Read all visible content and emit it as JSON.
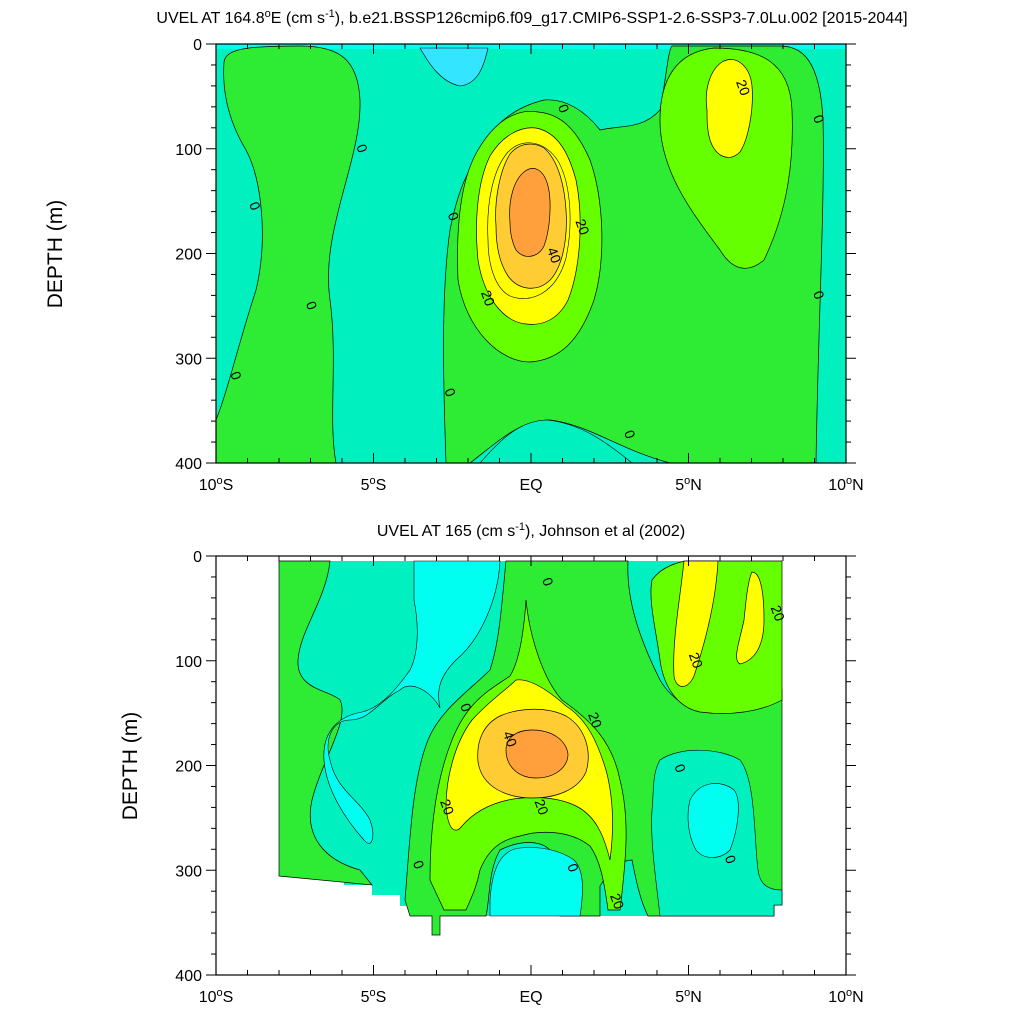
{
  "colors": {
    "lt_neg20": "#33E5FF",
    "lt_neg10": "#00FFF0",
    "lt_0": "#00F0C0",
    "lt_10": "#2EEB33",
    "lt_20": "#66FF00",
    "lt_30": "#FFFF00",
    "lt_40": "#FFCC33",
    "lt_50": "#FFA03C",
    "line": "#000000"
  },
  "chart_data": [
    {
      "type": "contour",
      "title": "UVEL AT 164.8°E (cm s^-1), b.e21.BSSP126cmip6.f09_g17.CMIP6-SSP1-2.6-SSP3-7.0Lu.002 [2015-2044]",
      "title_parts": {
        "a": "UVEL AT 164.8",
        "deg": "o",
        "b": "E (cm s",
        "sup": "-1",
        "c": "), b.e21.BSSP126cmip6.f09_g17.CMIP6-SSP1-2.6-SSP3-7.0Lu.002 [2015-2044]"
      },
      "ylabel": "DEPTH (m)",
      "xlim": [
        -10,
        10
      ],
      "ylim": [
        0,
        400
      ],
      "y_reversed": true,
      "xticks": [
        {
          "value": -10,
          "label": "10°S",
          "num": "10",
          "deg": "o",
          "hemi": "S"
        },
        {
          "value": -5,
          "label": "5°S",
          "num": "5",
          "deg": "o",
          "hemi": "S"
        },
        {
          "value": 0,
          "label": "EQ",
          "num": "EQ",
          "deg": "",
          "hemi": ""
        },
        {
          "value": 5,
          "label": "5°N",
          "num": "5",
          "deg": "o",
          "hemi": "N"
        },
        {
          "value": 10,
          "label": "10°N",
          "num": "10",
          "deg": "o",
          "hemi": "N"
        }
      ],
      "yticks": [
        0,
        100,
        200,
        300,
        400
      ],
      "contour_interval": 10,
      "max_value_approx": 50,
      "contour_labels": [
        {
          "text": "0",
          "lon": -8.8,
          "depth": 155
        },
        {
          "text": "0",
          "lon": -5.4,
          "depth": 100
        },
        {
          "text": "0",
          "lon": -7.0,
          "depth": 250
        },
        {
          "text": "0",
          "lon": -9.4,
          "depth": 317
        },
        {
          "text": "0",
          "lon": -2.5,
          "depth": 165
        },
        {
          "text": "0",
          "lon": -2.6,
          "depth": 333
        },
        {
          "text": "0",
          "lon": 1.0,
          "depth": 62
        },
        {
          "text": "0",
          "lon": 3.1,
          "depth": 373
        },
        {
          "text": "0",
          "lon": 9.1,
          "depth": 72
        },
        {
          "text": "0",
          "lon": 9.1,
          "depth": 240
        },
        {
          "text": "20",
          "lon": 6.7,
          "depth": 42
        },
        {
          "text": "20",
          "lon": 1.6,
          "depth": 175
        },
        {
          "text": "40",
          "lon": 0.7,
          "depth": 202
        },
        {
          "text": "20",
          "lon": -1.4,
          "depth": 243
        }
      ]
    },
    {
      "type": "contour",
      "title": "UVEL AT 165 (cm s^-1), Johnson et al (2002)",
      "title_parts": {
        "a": "UVEL AT 165 (cm s",
        "sup": "-1",
        "c": "), Johnson et al (2002)"
      },
      "ylabel": "DEPTH (m)",
      "xlim": [
        -10,
        10
      ],
      "ylim": [
        0,
        400
      ],
      "y_reversed": true,
      "data_extent": {
        "lon": [
          -8,
          8
        ],
        "depth": [
          0,
          365
        ]
      },
      "xticks": [
        {
          "value": -10,
          "label": "10°S",
          "num": "10",
          "deg": "o",
          "hemi": "S"
        },
        {
          "value": -5,
          "label": "5°S",
          "num": "5",
          "deg": "o",
          "hemi": "S"
        },
        {
          "value": 0,
          "label": "EQ",
          "num": "EQ",
          "deg": "",
          "hemi": ""
        },
        {
          "value": 5,
          "label": "5°N",
          "num": "5",
          "deg": "o",
          "hemi": "N"
        },
        {
          "value": 10,
          "label": "10°N",
          "num": "10",
          "deg": "o",
          "hemi": "N"
        }
      ],
      "yticks": [
        0,
        100,
        200,
        300,
        400
      ],
      "contour_interval": 10,
      "max_value_approx": 50,
      "contour_labels": [
        {
          "text": "0",
          "lon": 0.5,
          "depth": 25
        },
        {
          "text": "20",
          "lon": 7.8,
          "depth": 55
        },
        {
          "text": "20",
          "lon": 5.2,
          "depth": 100
        },
        {
          "text": "0",
          "lon": -2.1,
          "depth": 145
        },
        {
          "text": "20",
          "lon": 2.0,
          "depth": 157
        },
        {
          "text": "40",
          "lon": -0.7,
          "depth": 175
        },
        {
          "text": "0",
          "lon": 4.7,
          "depth": 203
        },
        {
          "text": "20",
          "lon": -2.7,
          "depth": 240
        },
        {
          "text": "20",
          "lon": 0.3,
          "depth": 240
        },
        {
          "text": "0",
          "lon": -3.6,
          "depth": 295
        },
        {
          "text": "0",
          "lon": 1.3,
          "depth": 298
        },
        {
          "text": "0",
          "lon": 6.3,
          "depth": 290
        },
        {
          "text": "20",
          "lon": 2.7,
          "depth": 330
        }
      ]
    }
  ]
}
